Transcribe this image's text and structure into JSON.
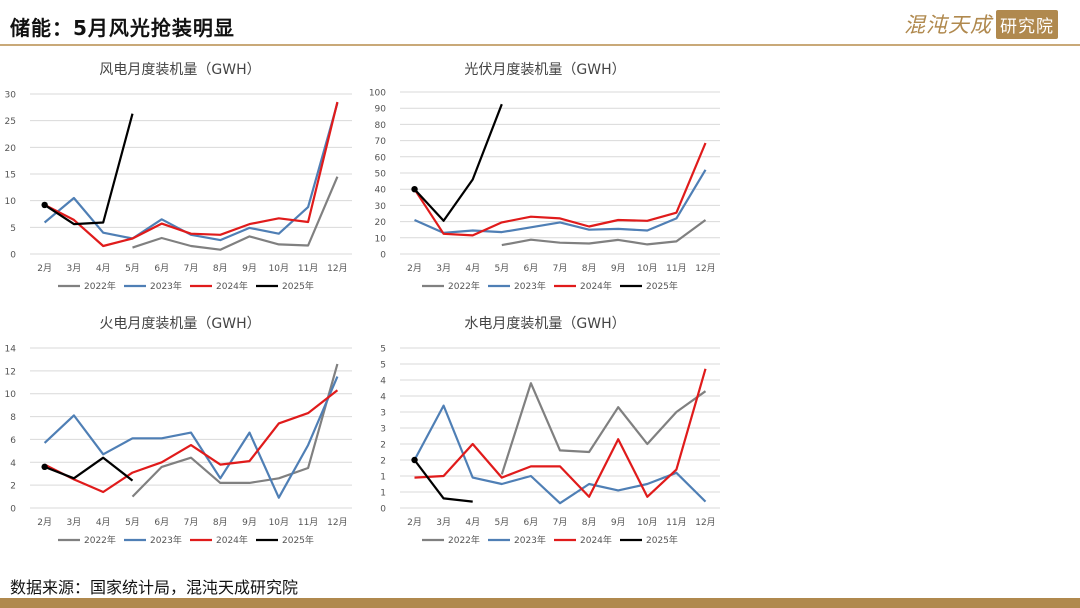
{
  "page": {
    "title": "储能：5月风光抢装明显",
    "logo_text": "混沌天成",
    "logo_stamp": "研究院",
    "source": "数据来源：国家统计局，混沌天成研究院"
  },
  "colors": {
    "accent": "#b0894e",
    "series": {
      "2022年": "#808080",
      "2023年": "#4f7fb5",
      "2024年": "#e01b1b",
      "2025年": "#000000"
    }
  },
  "chart_data": [
    {
      "type": "line",
      "title": "风电月度装机量（GWH）",
      "categories": [
        "2月",
        "3月",
        "4月",
        "5月",
        "6月",
        "7月",
        "8月",
        "9月",
        "10月",
        "11月",
        "12月"
      ],
      "ylim": [
        0,
        30
      ],
      "yticks": [
        0,
        5,
        10,
        15,
        20,
        25,
        30
      ],
      "grid": true,
      "legend": "bottom",
      "series": [
        {
          "name": "2022年",
          "values": [
            null,
            null,
            null,
            1.2,
            3.0,
            1.5,
            0.8,
            3.3,
            1.8,
            1.6,
            14.5
          ]
        },
        {
          "name": "2023年",
          "values": [
            5.9,
            10.5,
            4.0,
            2.9,
            6.5,
            3.6,
            2.6,
            4.9,
            3.8,
            8.8,
            28.3
          ]
        },
        {
          "name": "2024年",
          "values": [
            9.2,
            6.4,
            1.5,
            2.9,
            5.7,
            3.8,
            3.6,
            5.6,
            6.7,
            6.0,
            28.5
          ]
        },
        {
          "name": "2025年",
          "values": [
            9.2,
            5.6,
            5.9,
            26.3,
            null,
            null,
            null,
            null,
            null,
            null,
            null
          ]
        }
      ]
    },
    {
      "type": "line",
      "title": "光伏月度装机量（GWH）",
      "categories": [
        "2月",
        "3月",
        "4月",
        "5月",
        "6月",
        "7月",
        "8月",
        "9月",
        "10月",
        "11月",
        "12月"
      ],
      "ylim": [
        0,
        100
      ],
      "yticks": [
        0,
        10,
        20,
        30,
        40,
        50,
        60,
        70,
        80,
        90,
        100
      ],
      "grid": true,
      "legend": "bottom",
      "series": [
        {
          "name": "2022年",
          "values": [
            null,
            null,
            null,
            5.5,
            8.8,
            7.0,
            6.5,
            8.7,
            5.9,
            7.8,
            21.0
          ]
        },
        {
          "name": "2023年",
          "values": [
            21.0,
            13.0,
            14.5,
            13.5,
            16.5,
            19.5,
            15.0,
            15.5,
            14.5,
            22.0,
            52.0
          ]
        },
        {
          "name": "2024年",
          "values": [
            40.0,
            12.5,
            11.5,
            19.5,
            23.0,
            22.0,
            17.0,
            21.0,
            20.5,
            25.5,
            68.5
          ]
        },
        {
          "name": "2025年",
          "values": [
            40.0,
            20.5,
            46.0,
            92.5,
            null,
            null,
            null,
            null,
            null,
            null,
            null
          ]
        }
      ]
    },
    {
      "type": "line",
      "title": "火电月度装机量（GWH）",
      "categories": [
        "2月",
        "3月",
        "4月",
        "5月",
        "6月",
        "7月",
        "8月",
        "9月",
        "10月",
        "11月",
        "12月"
      ],
      "ylim": [
        0,
        14
      ],
      "yticks": [
        0,
        2,
        4,
        6,
        8,
        10,
        12,
        14
      ],
      "grid": true,
      "legend": "bottom",
      "series": [
        {
          "name": "2022年",
          "values": [
            null,
            null,
            null,
            1.0,
            3.6,
            4.4,
            2.2,
            2.2,
            2.6,
            3.5,
            12.6
          ]
        },
        {
          "name": "2023年",
          "values": [
            5.7,
            8.1,
            4.7,
            6.1,
            6.1,
            6.6,
            2.6,
            6.6,
            0.9,
            5.5,
            11.5
          ]
        },
        {
          "name": "2024年",
          "values": [
            3.8,
            2.5,
            1.4,
            3.1,
            4.0,
            5.5,
            3.8,
            4.1,
            7.4,
            8.3,
            10.3
          ]
        },
        {
          "name": "2025年",
          "values": [
            3.6,
            2.6,
            4.4,
            2.4,
            null,
            null,
            null,
            null,
            null,
            null,
            null
          ]
        }
      ]
    },
    {
      "type": "line",
      "title": "水电月度装机量（GWH）",
      "categories": [
        "2月",
        "3月",
        "4月",
        "5月",
        "6月",
        "7月",
        "8月",
        "9月",
        "10月",
        "11月",
        "12月"
      ],
      "ylim": [
        0,
        5
      ],
      "yticks": [
        0,
        0.5,
        1,
        1.5,
        2,
        2.5,
        3,
        3.5,
        4,
        4.5,
        5
      ],
      "ytick_labels": [
        "0",
        "1",
        "1",
        "2",
        "2",
        "3",
        "3",
        "4",
        "4",
        "5",
        "5"
      ],
      "grid": true,
      "legend": "bottom",
      "series": [
        {
          "name": "2022年",
          "values": [
            null,
            null,
            null,
            1.05,
            3.9,
            1.8,
            1.75,
            3.15,
            2.0,
            3.0,
            3.65
          ]
        },
        {
          "name": "2023年",
          "values": [
            1.5,
            3.2,
            0.95,
            0.75,
            1.0,
            0.15,
            0.75,
            0.55,
            0.75,
            1.1,
            0.2
          ]
        },
        {
          "name": "2024年",
          "values": [
            0.95,
            1.0,
            2.0,
            0.95,
            1.3,
            1.3,
            0.35,
            2.15,
            0.35,
            1.2,
            4.35
          ]
        },
        {
          "name": "2025年",
          "values": [
            1.5,
            0.3,
            0.2,
            null,
            null,
            null,
            null,
            null,
            null,
            null,
            null
          ]
        }
      ]
    }
  ]
}
